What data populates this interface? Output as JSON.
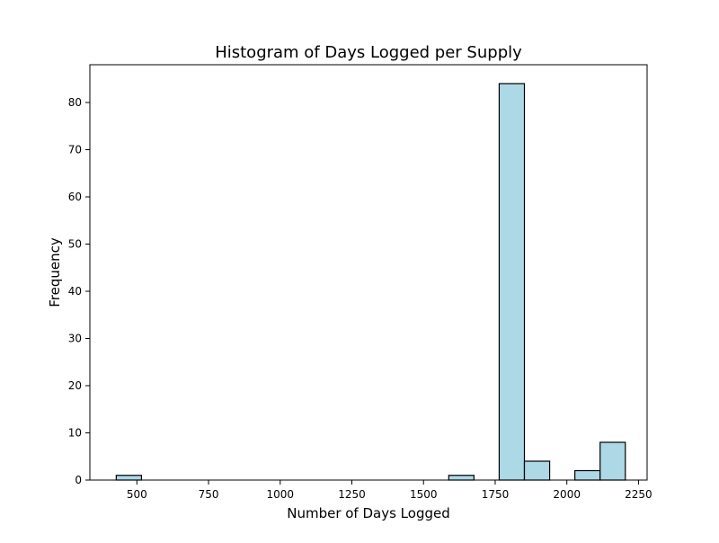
{
  "chart_data": {
    "type": "bar",
    "title": "Histogram of Days Logged per Supply",
    "xlabel": "Number of Days Logged",
    "ylabel": "Frequency",
    "xlim": [
      336,
      2280
    ],
    "ylim": [
      0,
      88
    ],
    "xticks": [
      500,
      750,
      1000,
      1250,
      1500,
      1750,
      2000,
      2250
    ],
    "yticks": [
      0,
      10,
      20,
      30,
      40,
      50,
      60,
      70,
      80
    ],
    "bins": [
      {
        "start": 428,
        "end": 516,
        "count": 1
      },
      {
        "start": 1588,
        "end": 1676,
        "count": 1
      },
      {
        "start": 1764,
        "end": 1852,
        "count": 84
      },
      {
        "start": 1852,
        "end": 1940,
        "count": 4
      },
      {
        "start": 2028,
        "end": 2116,
        "count": 2
      },
      {
        "start": 2116,
        "end": 2204,
        "count": 8
      }
    ],
    "bar_color": "#add8e6",
    "edge_color": "#000000",
    "grid": false,
    "legend": false
  }
}
